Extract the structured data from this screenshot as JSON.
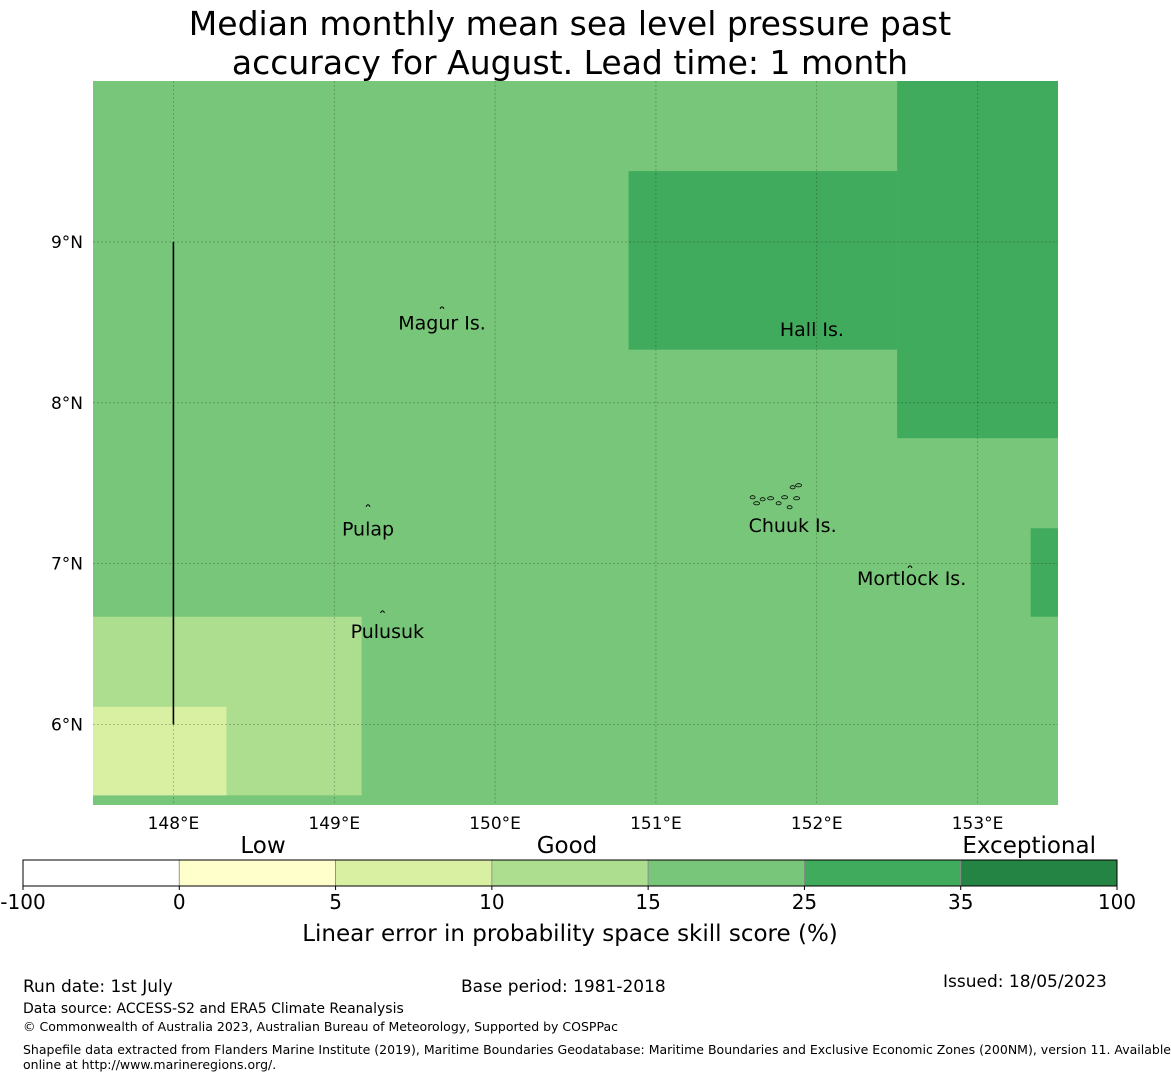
{
  "title_lines": [
    "Median monthly mean sea level pressure past",
    "accuracy for August. Lead time: 1 month"
  ],
  "chart_data": {
    "type": "heatmap",
    "title": "Median monthly mean sea level pressure past accuracy for August. Lead time: 1 month",
    "xlim": [
      147.5,
      153.5
    ],
    "ylim": [
      5.5,
      10.0
    ],
    "x_ticks": [
      {
        "value": 148,
        "label": "148°E"
      },
      {
        "value": 149,
        "label": "149°E"
      },
      {
        "value": 150,
        "label": "150°E"
      },
      {
        "value": 151,
        "label": "151°E"
      },
      {
        "value": 152,
        "label": "152°E"
      },
      {
        "value": 153,
        "label": "153°E"
      }
    ],
    "y_ticks": [
      {
        "value": 6,
        "label": "6°N"
      },
      {
        "value": 7,
        "label": "7°N"
      },
      {
        "value": 8,
        "label": "8°N"
      },
      {
        "value": 9,
        "label": "9°N"
      }
    ],
    "grid": true,
    "background_category": "15-25",
    "regions": [
      {
        "lon": [
          150.83,
          152.5
        ],
        "lat": [
          8.33,
          9.44
        ],
        "category": "25-35"
      },
      {
        "lon": [
          152.5,
          153.5
        ],
        "lat": [
          7.78,
          10.0
        ],
        "category": "25-35"
      },
      {
        "lon": [
          153.33,
          153.5
        ],
        "lat": [
          6.67,
          7.22
        ],
        "category": "25-35"
      },
      {
        "lon": [
          147.5,
          149.17
        ],
        "lat": [
          5.56,
          6.67
        ],
        "category": "10-15"
      },
      {
        "lon": [
          147.5,
          148.33
        ],
        "lat": [
          5.56,
          6.11
        ],
        "category": "5-10"
      }
    ],
    "boundary_line": {
      "lon": 148.0,
      "lat": [
        6.0,
        9.0
      ]
    },
    "places": [
      {
        "name": "Magur Is.",
        "lon": 149.67,
        "lat": 8.5
      },
      {
        "name": "Hall Is.",
        "lon": 151.97,
        "lat": 8.46
      },
      {
        "name": "Pulap",
        "lon": 149.21,
        "lat": 7.22
      },
      {
        "name": "Chuuk Is.",
        "lon": 151.85,
        "lat": 7.24
      },
      {
        "name": "Mortlock Is.",
        "lon": 152.59,
        "lat": 6.91
      },
      {
        "name": "Pulusuk",
        "lon": 149.33,
        "lat": 6.58
      }
    ],
    "islands": [
      {
        "lon": 149.67,
        "lat": 8.59
      },
      {
        "lon": 149.21,
        "lat": 7.36
      },
      {
        "lon": 149.3,
        "lat": 6.7
      },
      {
        "lon": 151.85,
        "lat": 7.4
      },
      {
        "lon": 152.58,
        "lat": 6.98
      }
    ],
    "colorbar": {
      "label": "Linear error in probability space skill score (%)",
      "ticks": [
        "-100",
        "0",
        "5",
        "10",
        "15",
        "25",
        "35",
        "100"
      ],
      "categories": [
        {
          "range": "-100-0",
          "color": "#ffffff"
        },
        {
          "range": "0-5",
          "color": "#ffffcc"
        },
        {
          "range": "5-10",
          "color": "#d9f0a3"
        },
        {
          "range": "10-15",
          "color": "#addd8e"
        },
        {
          "range": "15-25",
          "color": "#78c679"
        },
        {
          "range": "25-35",
          "color": "#41ab5d"
        },
        {
          "range": "35-100",
          "color": "#238443"
        }
      ],
      "qualitative_labels": [
        "Low",
        "Good",
        "Exceptional"
      ]
    }
  },
  "footer": {
    "run_date": "Run date: 1st July",
    "base_period": "Base period: 1981-2018",
    "issued": "Issued: 18/05/2023",
    "data_source": "Data source: ACCESS-S2 and ERA5 Climate Reanalysis",
    "copyright": "© Commonwealth of Australia 2023, Australian Bureau of Meteorology, Supported by COSPPac",
    "shapefile_line1": "Shapefile data extracted from Flanders Marine Institute (2019), Maritime Boundaries Geodatabase: Maritime Boundaries and Exclusive Economic Zones (200NM), version 11. Available",
    "shapefile_line2": "online at http://www.marineregions.org/."
  }
}
